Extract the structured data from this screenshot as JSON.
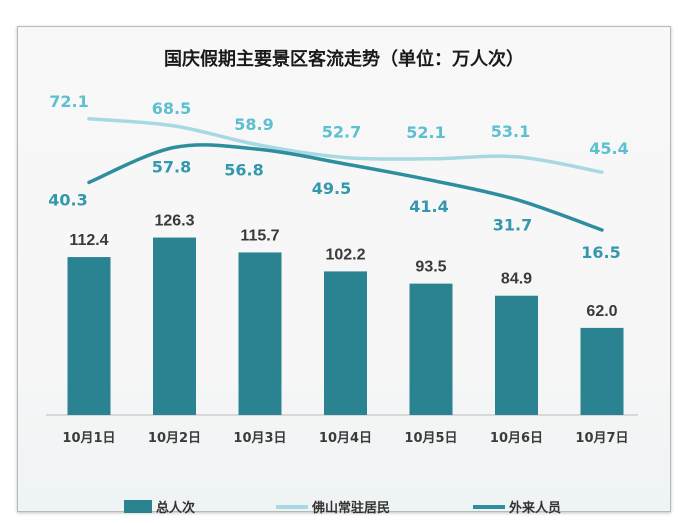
{
  "chart_data": {
    "type": "bar",
    "title": "国庆假期主要景区客流走势（单位：万人次）",
    "categories": [
      "10月1日",
      "10月2日",
      "10月3日",
      "10月4日",
      "10月5日",
      "10月6日",
      "10月7日"
    ],
    "series": [
      {
        "name": "总人次",
        "kind": "bar",
        "values": [
          112.4,
          126.3,
          115.7,
          102.2,
          93.5,
          84.9,
          62.0
        ],
        "color": "#2b8290"
      },
      {
        "name": "佛山常驻居民",
        "kind": "line",
        "values": [
          72.1,
          68.5,
          58.9,
          52.7,
          52.1,
          53.1,
          45.4
        ],
        "color": "#a6d9e4",
        "label_color": "#5cc0d2"
      },
      {
        "name": "外来人员",
        "kind": "line",
        "values": [
          40.3,
          57.8,
          56.8,
          49.5,
          41.4,
          31.7,
          16.5
        ],
        "color": "#2e8d9e",
        "label_color": "#3398ad"
      }
    ],
    "xlabel": "",
    "ylabel": "",
    "grid": false,
    "legend": "bottom"
  }
}
